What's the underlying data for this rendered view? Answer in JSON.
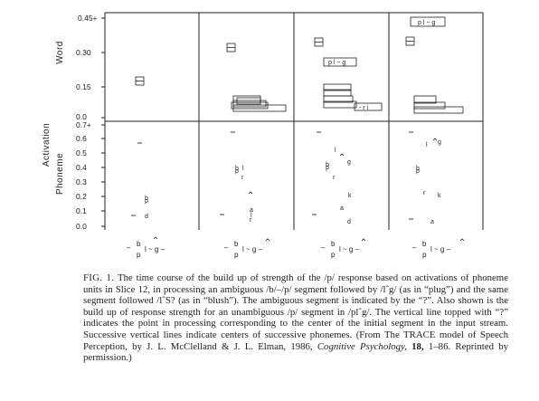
{
  "figure": {
    "y_axis_title": "Activation",
    "word_panel_label": "Word",
    "phoneme_panel_label": "Phoneme",
    "word_ticks": [
      "0.45+",
      "0.30",
      "0.15",
      "0.0"
    ],
    "phoneme_ticks": [
      "0.7+",
      "0.6",
      "0.5",
      "0.4",
      "0.3",
      "0.2",
      "0.1",
      "0.0"
    ],
    "column_sequence": {
      "top": "b",
      "bottom": "p",
      "rest": "l ~ g –",
      "lead": "–"
    },
    "word_box_labels": [
      "p l ~ g",
      "p l ~ g"
    ],
    "word_box_partial": "- r i",
    "phoneme_letters": [
      "p",
      "b",
      "d",
      "p",
      "b",
      "l",
      "r",
      "a",
      "l",
      "r",
      "l",
      "g",
      "p",
      "b",
      "r",
      "k",
      "a",
      "d",
      "g",
      "l",
      "p",
      "b",
      "r",
      "k",
      "a"
    ],
    "question_mark": "?"
  },
  "caption": {
    "label": "FIG. 1.",
    "text_1": " The time course of the build up of strength of the /p/ response based on activations of phoneme units in Slice 12, in processing an ambiguous /b/–/p/ segment followed by /lˆg/ (as in “plug”) and the same segment followed /lˆS? (as in “blush”). The ambiguous segment is indicated by the “?”. Also shown is the build up of response strength for an unambiguous /p/ segment in /plˆg/. The vertical line topped with “?” indicates the point in processing corresponding to the center of the initial segment in the input stream. Successive vertical lines indicate centers of successive phonemes. (From The TRACE model of Speech Perception, by J. L. McClelland & J. L. Elman, 1986, ",
    "journal": "Cognitive Psychology,",
    "volume": " 18,",
    "text_2": " 1–86. Reprinted by permission.)"
  }
}
